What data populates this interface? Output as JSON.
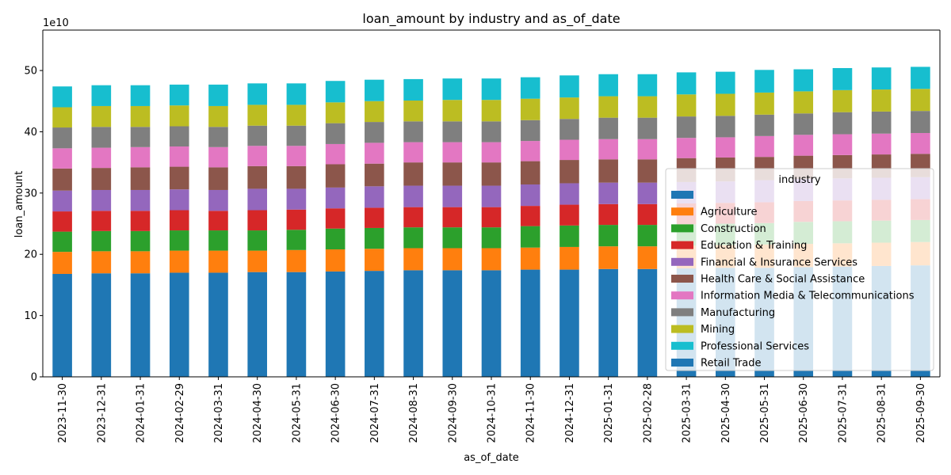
{
  "chart_data": {
    "type": "bar",
    "stacked": true,
    "title": "loan_amount by industry and as_of_date",
    "xlabel": "as_of_date",
    "ylabel": "loan_amount",
    "y_offset_label": "1e10",
    "y_unit_scale": 10000000000,
    "ylim": [
      0,
      56.6
    ],
    "yticks": [
      0,
      10,
      20,
      30,
      40,
      50
    ],
    "grid": false,
    "legend": {
      "title": "industry",
      "placement": "center-right"
    },
    "categories": [
      "2023-11-30",
      "2023-12-31",
      "2024-01-31",
      "2024-02-29",
      "2024-03-31",
      "2024-04-30",
      "2024-05-31",
      "2024-06-30",
      "2024-07-31",
      "2024-08-31",
      "2024-09-30",
      "2024-10-31",
      "2024-11-30",
      "2024-12-31",
      "2025-01-31",
      "2025-02-28",
      "2025-03-31",
      "2025-04-30",
      "2025-05-31",
      "2025-06-30",
      "2025-07-31",
      "2025-08-31",
      "2025-09-30"
    ],
    "series": [
      {
        "name": "",
        "color": "#1f77b4",
        "values": [
          0,
          0,
          0,
          0,
          0,
          0,
          0,
          0,
          0,
          0,
          0,
          0,
          0,
          0,
          0,
          0,
          0,
          0,
          0,
          0,
          0,
          0,
          0
        ]
      },
      {
        "name": "Agriculture",
        "color": "#ff7f0e",
        "values": [
          3.6,
          3.6,
          3.6,
          3.6,
          3.6,
          3.5,
          3.6,
          3.6,
          3.6,
          3.6,
          3.6,
          3.6,
          3.6,
          3.7,
          3.7,
          3.7,
          3.7,
          3.7,
          3.8,
          3.8,
          3.8,
          3.8,
          3.8
        ]
      },
      {
        "name": "Construction",
        "color": "#2ca02c",
        "values": [
          3.3,
          3.3,
          3.3,
          3.3,
          3.3,
          3.3,
          3.3,
          3.4,
          3.4,
          3.4,
          3.4,
          3.4,
          3.5,
          3.5,
          3.5,
          3.5,
          3.5,
          3.5,
          3.5,
          3.6,
          3.6,
          3.6,
          3.6
        ]
      },
      {
        "name": "Education & Training",
        "color": "#d62728",
        "values": [
          3.3,
          3.3,
          3.3,
          3.3,
          3.2,
          3.3,
          3.3,
          3.3,
          3.3,
          3.3,
          3.3,
          3.3,
          3.3,
          3.4,
          3.4,
          3.4,
          3.4,
          3.4,
          3.4,
          3.4,
          3.4,
          3.4,
          3.4
        ]
      },
      {
        "name": "Financial & Insurance Services",
        "color": "#9467bd",
        "values": [
          3.4,
          3.4,
          3.4,
          3.4,
          3.4,
          3.5,
          3.4,
          3.4,
          3.5,
          3.5,
          3.5,
          3.5,
          3.5,
          3.5,
          3.5,
          3.5,
          3.5,
          3.5,
          3.6,
          3.6,
          3.6,
          3.6,
          3.6
        ]
      },
      {
        "name": "Health Care & Social Assistance",
        "color": "#8c564b",
        "values": [
          3.6,
          3.6,
          3.7,
          3.7,
          3.7,
          3.7,
          3.7,
          3.8,
          3.7,
          3.8,
          3.8,
          3.8,
          3.8,
          3.8,
          3.8,
          3.8,
          3.9,
          3.9,
          3.8,
          3.8,
          3.8,
          3.8,
          3.8
        ]
      },
      {
        "name": "Information Media & Telecommunications",
        "color": "#e377c2",
        "values": [
          3.3,
          3.3,
          3.3,
          3.3,
          3.3,
          3.3,
          3.3,
          3.3,
          3.4,
          3.3,
          3.3,
          3.3,
          3.3,
          3.3,
          3.3,
          3.3,
          3.3,
          3.3,
          3.4,
          3.4,
          3.4,
          3.4,
          3.4
        ]
      },
      {
        "name": "Manufacturing",
        "color": "#7f7f7f",
        "values": [
          3.4,
          3.4,
          3.3,
          3.3,
          3.3,
          3.3,
          3.3,
          3.4,
          3.4,
          3.4,
          3.4,
          3.4,
          3.4,
          3.4,
          3.5,
          3.5,
          3.5,
          3.5,
          3.5,
          3.5,
          3.6,
          3.6,
          3.6
        ]
      },
      {
        "name": "Mining",
        "color": "#bcbd22",
        "values": [
          3.3,
          3.4,
          3.4,
          3.4,
          3.4,
          3.4,
          3.4,
          3.4,
          3.4,
          3.4,
          3.5,
          3.5,
          3.5,
          3.5,
          3.5,
          3.5,
          3.6,
          3.6,
          3.6,
          3.6,
          3.6,
          3.6,
          3.6
        ]
      },
      {
        "name": "Professional Services",
        "color": "#17becf",
        "values": [
          3.4,
          3.4,
          3.4,
          3.4,
          3.5,
          3.5,
          3.5,
          3.5,
          3.5,
          3.5,
          3.5,
          3.5,
          3.5,
          3.6,
          3.6,
          3.6,
          3.6,
          3.6,
          3.7,
          3.6,
          3.6,
          3.6,
          3.6
        ]
      },
      {
        "name": "Retail Trade",
        "color": "#1f77b4",
        "values": [
          16.8,
          16.9,
          16.9,
          17.0,
          17.0,
          17.1,
          17.1,
          17.2,
          17.3,
          17.4,
          17.4,
          17.4,
          17.5,
          17.5,
          17.6,
          17.6,
          17.7,
          17.8,
          17.8,
          17.9,
          18.0,
          18.1,
          18.2
        ]
      }
    ],
    "stack_order": [
      "Retail Trade",
      "Agriculture",
      "Construction",
      "Education & Training",
      "Financial & Insurance Services",
      "Health Care & Social Assistance",
      "Information Media & Telecommunications",
      "Manufacturing",
      "Mining",
      "Professional Services",
      ""
    ]
  }
}
